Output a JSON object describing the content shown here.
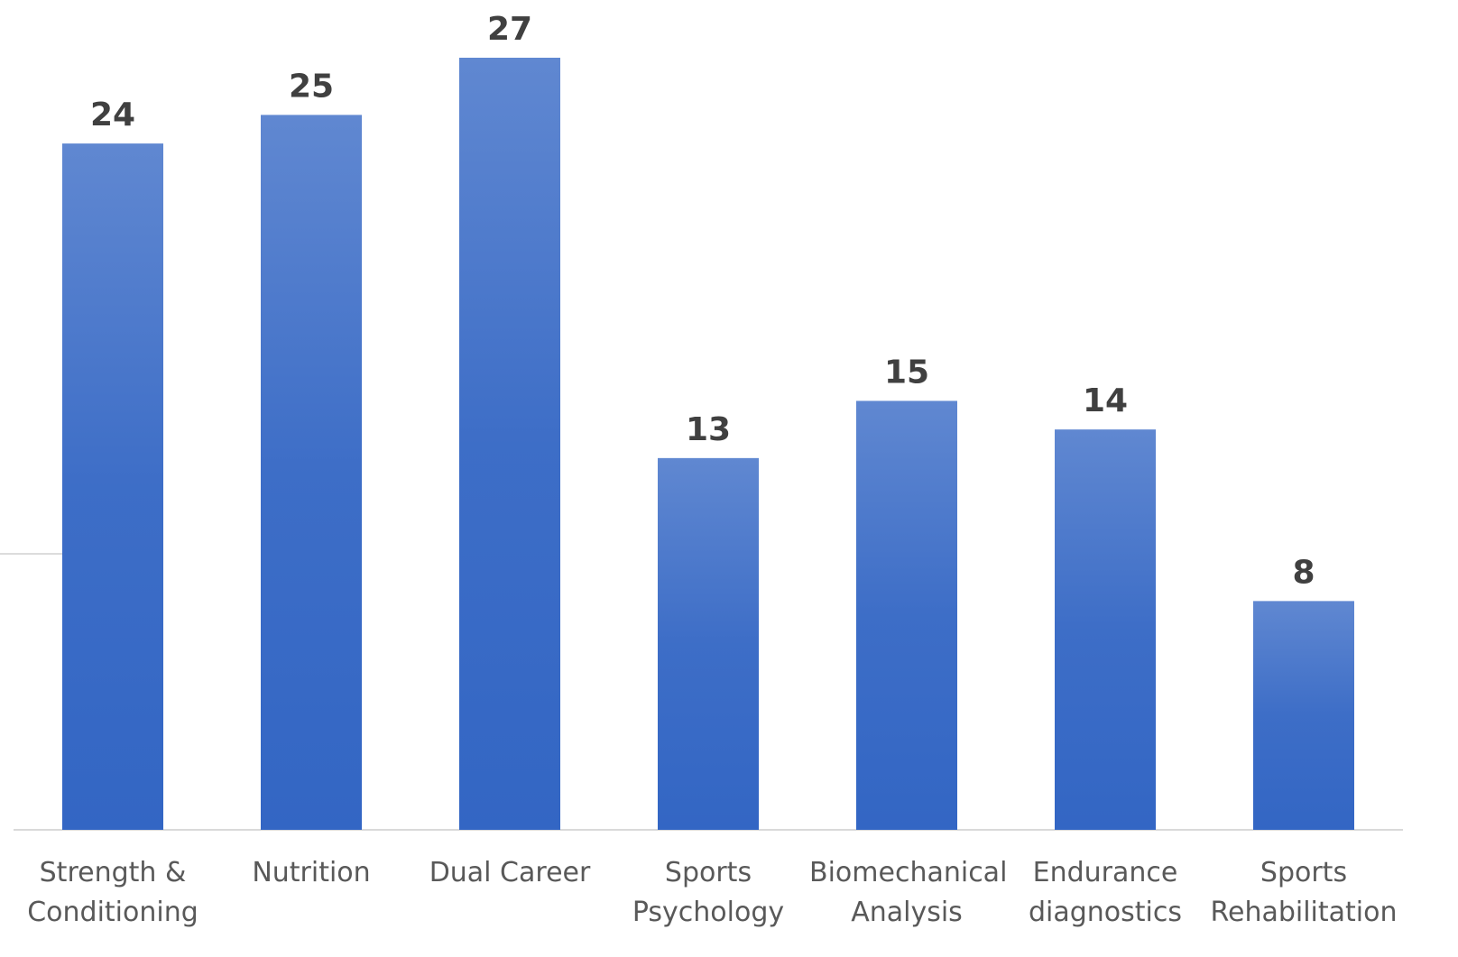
{
  "chart_data": {
    "type": "bar",
    "categories": [
      "Strength & Conditioning",
      "Nutrition",
      "Dual Career",
      "Sports Psychology",
      "Biomechanical Analysis",
      "Endurance diagnostics",
      "Sports Rehabilitation"
    ],
    "values": [
      24,
      25,
      27,
      13,
      15,
      14,
      8
    ],
    "color": "#3366c4"
  }
}
